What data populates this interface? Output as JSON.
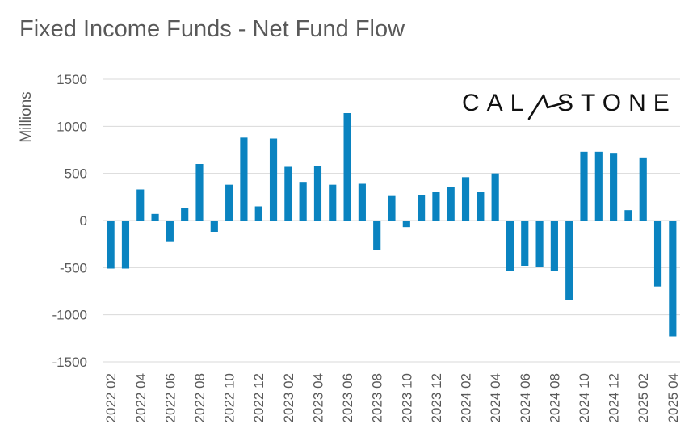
{
  "chart_data": {
    "type": "bar",
    "title": "Fixed Income Funds - Net Fund Flow",
    "ylabel": "Millions",
    "xlabel": "",
    "ylim": [
      -1500,
      1500
    ],
    "yticks": [
      1500,
      1000,
      500,
      0,
      -500,
      -1000,
      -1500
    ],
    "grid": true,
    "bar_color": "#0a83c0",
    "categories": [
      "2022 02",
      "2022 03",
      "2022 04",
      "2022 05",
      "2022 06",
      "2022 07",
      "2022 08",
      "2022 09",
      "2022 10",
      "2022 11",
      "2022 12",
      "2023 01",
      "2023 02",
      "2023 03",
      "2023 04",
      "2023 05",
      "2023 06",
      "2023 07",
      "2023 08",
      "2023 09",
      "2023 10",
      "2023 11",
      "2023 12",
      "2024 01",
      "2024 02",
      "2024 03",
      "2024 04",
      "2024 05",
      "2024 06",
      "2024 07",
      "2024 08",
      "2024 09",
      "2024 10",
      "2024 11",
      "2024 12",
      "2025 01",
      "2025 02",
      "2025 03",
      "2025 04"
    ],
    "xtick_labels": [
      "2022 02",
      "2022 04",
      "2022 06",
      "2022 08",
      "2022 10",
      "2022 12",
      "2023 02",
      "2023 04",
      "2023 06",
      "2023 08",
      "2023 10",
      "2023 12",
      "2024 02",
      "2024 04",
      "2024 06",
      "2024 08",
      "2024 10",
      "2024 12",
      "2025 02",
      "2025 04"
    ],
    "values": [
      -510,
      -510,
      330,
      70,
      -220,
      130,
      600,
      -120,
      380,
      880,
      150,
      870,
      570,
      410,
      580,
      380,
      1140,
      390,
      -310,
      260,
      -70,
      270,
      300,
      360,
      460,
      300,
      500,
      -540,
      -480,
      -490,
      -540,
      -840,
      730,
      730,
      710,
      110,
      670,
      -700,
      -1230
    ]
  },
  "logo": {
    "text_left": "CAL",
    "text_right": "STONE"
  }
}
